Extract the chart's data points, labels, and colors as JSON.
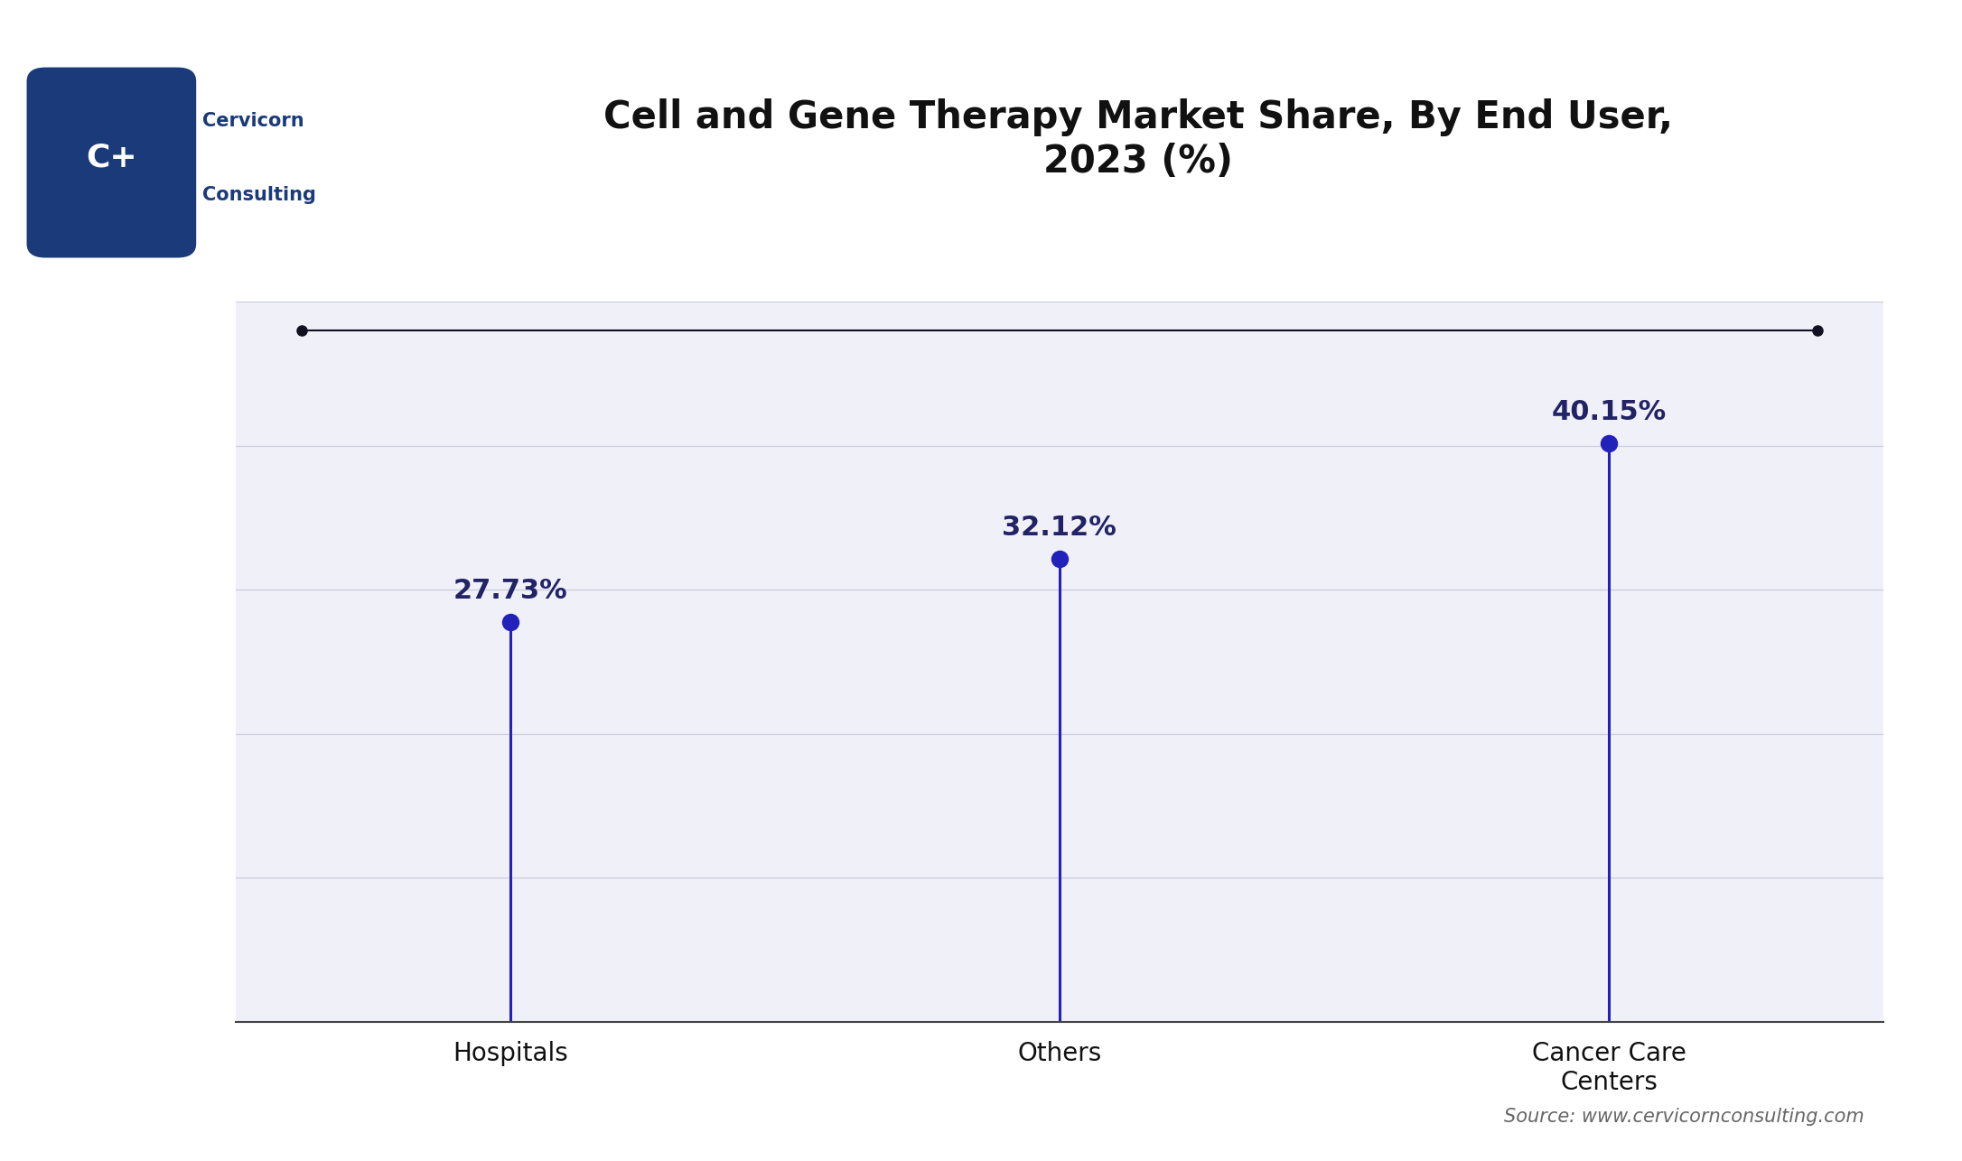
{
  "title": "Cell and Gene Therapy Market Share, By End User,\n2023 (%)",
  "categories": [
    "Hospitals",
    "Others",
    "Cancer Care\nCenters"
  ],
  "values": [
    27.73,
    32.12,
    40.15
  ],
  "labels": [
    "27.73%",
    "32.12%",
    "40.15%"
  ],
  "line_color": "#2222bb",
  "marker_color": "#2222bb",
  "top_line_color": "#111122",
  "background_color": "#ffffff",
  "plot_bg_color": "#f0f0f8",
  "grid_color": "#ccccdd",
  "title_color": "#111111",
  "label_color": "#222266",
  "xlabel_color": "#111111",
  "source_text": "Source: www.cervicornconsulting.com",
  "title_fontsize": 30,
  "label_fontsize": 22,
  "tick_fontsize": 20,
  "source_fontsize": 15,
  "ylim": [
    0,
    50
  ],
  "marker_size": 13,
  "logo_box_color": "#1a3a7a",
  "logo_text_color": "#1a3a7a"
}
